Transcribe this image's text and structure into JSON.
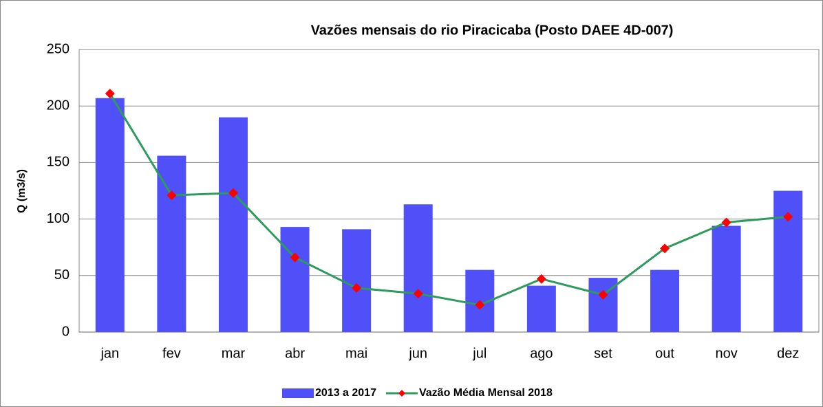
{
  "chart_data": {
    "type": "bar_line",
    "title": "Vazões mensais do rio Piracicaba (Posto DAEE 4D-007)",
    "y_label": "Q (m3/s)",
    "categories": [
      "jan",
      "fev",
      "mar",
      "abr",
      "mai",
      "jun",
      "jul",
      "ago",
      "set",
      "out",
      "nov",
      "dez"
    ],
    "series": [
      {
        "name": "2013 a 2017",
        "type": "bar",
        "color": "#5050f8",
        "values": [
          207,
          156,
          190,
          93,
          91,
          113,
          55,
          41,
          48,
          55,
          94,
          125
        ]
      },
      {
        "name": "Vazão Média Mensal 2018",
        "type": "line",
        "color": "#2e9a5c",
        "marker_color": "#ff0000",
        "values": [
          211,
          121,
          123,
          66,
          39,
          34,
          24,
          47,
          33,
          74,
          97,
          102
        ]
      }
    ],
    "ylim": [
      0,
      250
    ],
    "yticks": [
      0,
      50,
      100,
      150,
      200,
      250
    ],
    "grid": true,
    "legend": "bottom"
  }
}
